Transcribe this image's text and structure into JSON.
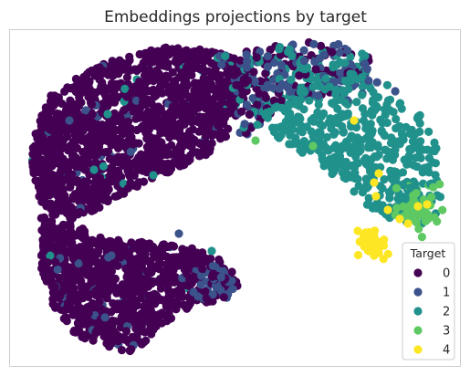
{
  "chart_data": {
    "type": "scatter",
    "title": "Embeddings projections by target",
    "xlabel": "",
    "ylabel": "",
    "grid": false,
    "axes_ticks": "none",
    "legend": {
      "title": "Target",
      "placement": "lower right",
      "entries": [
        "0",
        "1",
        "2",
        "3",
        "4"
      ]
    },
    "colors": {
      "0": "#440154",
      "1": "#3b528b",
      "2": "#21918c",
      "3": "#5ec962",
      "4": "#fde725"
    },
    "clusters": [
      {
        "target": "0",
        "region": "left body (upper lobe + lower lobe)",
        "approx_points": 2400,
        "dominant": true
      },
      {
        "target": "1",
        "region": "upper middle band and tip of lower lobe, sparse within target 0",
        "approx_points": 220
      },
      {
        "target": "2",
        "region": "upper right arm",
        "approx_points": 450
      },
      {
        "target": "3",
        "region": "right end of arm",
        "approx_points": 40
      },
      {
        "target": "4",
        "region": "lower right tip",
        "approx_points": 60
      }
    ]
  }
}
